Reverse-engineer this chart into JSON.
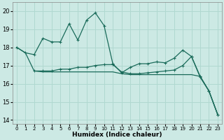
{
  "xlabel": "Humidex (Indice chaleur)",
  "bg_color": "#cce9e4",
  "grid_color": "#b0d8d0",
  "line_color": "#1a6b5a",
  "xlim": [
    -0.5,
    23.5
  ],
  "ylim": [
    13.8,
    20.5
  ],
  "yticks": [
    14,
    15,
    16,
    17,
    18,
    19,
    20
  ],
  "xticks": [
    0,
    1,
    2,
    3,
    4,
    5,
    6,
    7,
    8,
    9,
    10,
    11,
    12,
    13,
    14,
    15,
    16,
    17,
    18,
    19,
    20,
    21,
    22,
    23
  ],
  "line1_x": [
    0,
    1,
    2,
    3,
    4,
    5,
    6,
    7,
    8,
    9,
    10,
    11,
    12,
    13,
    14,
    15,
    16,
    17,
    18,
    19,
    20,
    21,
    22,
    23
  ],
  "line1_y": [
    18.0,
    17.7,
    17.6,
    18.5,
    18.3,
    18.3,
    19.3,
    18.4,
    19.5,
    19.9,
    19.2,
    17.1,
    16.6,
    16.9,
    17.1,
    17.1,
    17.2,
    17.15,
    17.4,
    17.85,
    17.5,
    16.4,
    15.6,
    14.3
  ],
  "line2_x": [
    2,
    3,
    4,
    5,
    6,
    7,
    8,
    9,
    10,
    11,
    12,
    13,
    14,
    15,
    16,
    17,
    18,
    19,
    20,
    21,
    22,
    23
  ],
  "line2_y": [
    16.7,
    16.7,
    16.7,
    16.8,
    16.8,
    16.9,
    16.9,
    17.0,
    17.05,
    17.05,
    16.65,
    16.55,
    16.55,
    16.6,
    16.65,
    16.7,
    16.75,
    17.0,
    17.5,
    16.35,
    15.6,
    14.3
  ],
  "line3_x": [
    0,
    1,
    2,
    3,
    4,
    5,
    6,
    7,
    8,
    9,
    10,
    11,
    12,
    13,
    14,
    15,
    16,
    17,
    18,
    19,
    20,
    21,
    22,
    23
  ],
  "line3_y": [
    18.0,
    17.7,
    16.7,
    16.65,
    16.65,
    16.65,
    16.65,
    16.65,
    16.65,
    16.65,
    16.65,
    16.65,
    16.55,
    16.5,
    16.5,
    16.5,
    16.5,
    16.5,
    16.5,
    16.5,
    16.5,
    16.4,
    15.6,
    14.3
  ]
}
